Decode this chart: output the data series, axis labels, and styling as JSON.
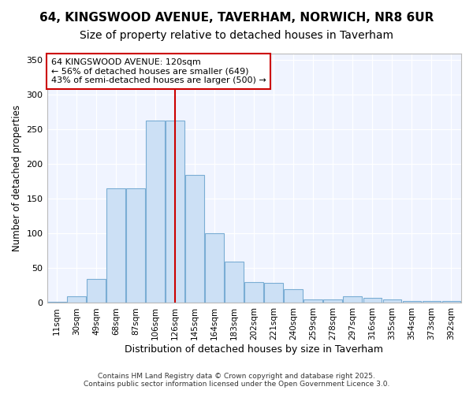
{
  "title1": "64, KINGSWOOD AVENUE, TAVERHAM, NORWICH, NR8 6UR",
  "title2": "Size of property relative to detached houses in Taverham",
  "xlabel": "Distribution of detached houses by size in Taverham",
  "ylabel": "Number of detached properties",
  "bar_labels": [
    "11sqm",
    "30sqm",
    "49sqm",
    "68sqm",
    "87sqm",
    "106sqm",
    "126sqm",
    "145sqm",
    "164sqm",
    "183sqm",
    "202sqm",
    "221sqm",
    "240sqm",
    "259sqm",
    "278sqm",
    "297sqm",
    "316sqm",
    "335sqm",
    "354sqm",
    "373sqm",
    "392sqm"
  ],
  "bar_values": [
    2,
    10,
    35,
    165,
    165,
    263,
    263,
    185,
    100,
    60,
    30,
    29,
    20,
    5,
    5,
    10,
    7,
    5,
    3,
    3,
    3
  ],
  "bar_color": "#cce0f5",
  "bar_edge_color": "#7aadd4",
  "background_color": "#ffffff",
  "plot_bg_color": "#f0f4ff",
  "vline_x_index": 6,
  "vline_color": "#cc0000",
  "annotation_line1": "64 KINGSWOOD AVENUE: 120sqm",
  "annotation_line2": "← 56% of detached houses are smaller (649)",
  "annotation_line3": "43% of semi-detached houses are larger (500) →",
  "annotation_box_color": "#ffffff",
  "annotation_box_edge": "#cc0000",
  "ylim": [
    0,
    360
  ],
  "yticks": [
    0,
    50,
    100,
    150,
    200,
    250,
    300,
    350
  ],
  "footer1": "Contains HM Land Registry data © Crown copyright and database right 2025.",
  "footer2": "Contains public sector information licensed under the Open Government Licence 3.0.",
  "title_fontsize": 11,
  "subtitle_fontsize": 10
}
